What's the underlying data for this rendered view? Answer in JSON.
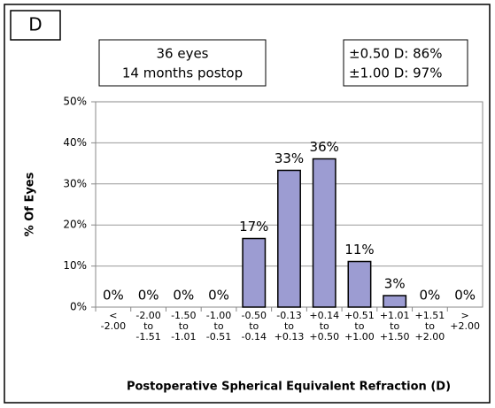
{
  "chart_data": {
    "type": "bar",
    "panel_label": "D",
    "annotations": [
      [
        "36 eyes",
        "14 months postop"
      ],
      [
        "±0.50 D: 86%",
        "±1.00 D: 97%"
      ]
    ],
    "ylabel": "% Of Eyes",
    "xlabel": "Postoperative Spherical Equivalent Refraction (D)",
    "categories": [
      [
        "<",
        "-2.00"
      ],
      [
        "-2.00",
        "to",
        "-1.51"
      ],
      [
        "-1.50",
        "to",
        "-1.01"
      ],
      [
        "-1.00",
        "to",
        "-0.51"
      ],
      [
        "-0.50",
        "to",
        "-0.14"
      ],
      [
        "-0.13",
        "to",
        "+0.13"
      ],
      [
        "+0.14",
        "to",
        "+0.50"
      ],
      [
        "+0.51",
        "to",
        "+1.00"
      ],
      [
        "+1.01",
        "to",
        "+1.50"
      ],
      [
        "+1.51",
        "to",
        "+2.00"
      ],
      [
        ">",
        "+2.00"
      ]
    ],
    "values": [
      0,
      0,
      0,
      0,
      16.7,
      33.3,
      36.1,
      11.1,
      2.8,
      0,
      0
    ],
    "value_labels": [
      "0%",
      "0%",
      "0%",
      "0%",
      "17%",
      "33%",
      "36%",
      "11%",
      "3%",
      "0%",
      "0%"
    ],
    "color": "#9c9cd2",
    "ylim": [
      0,
      50
    ],
    "yticks": [
      {
        "value": 0,
        "label": "0%"
      },
      {
        "value": 10,
        "label": "10%"
      },
      {
        "value": 20,
        "label": "20%"
      },
      {
        "value": 30,
        "label": "30%"
      },
      {
        "value": 40,
        "label": "40%"
      },
      {
        "value": 50,
        "label": "50%"
      }
    ],
    "grid": true
  }
}
